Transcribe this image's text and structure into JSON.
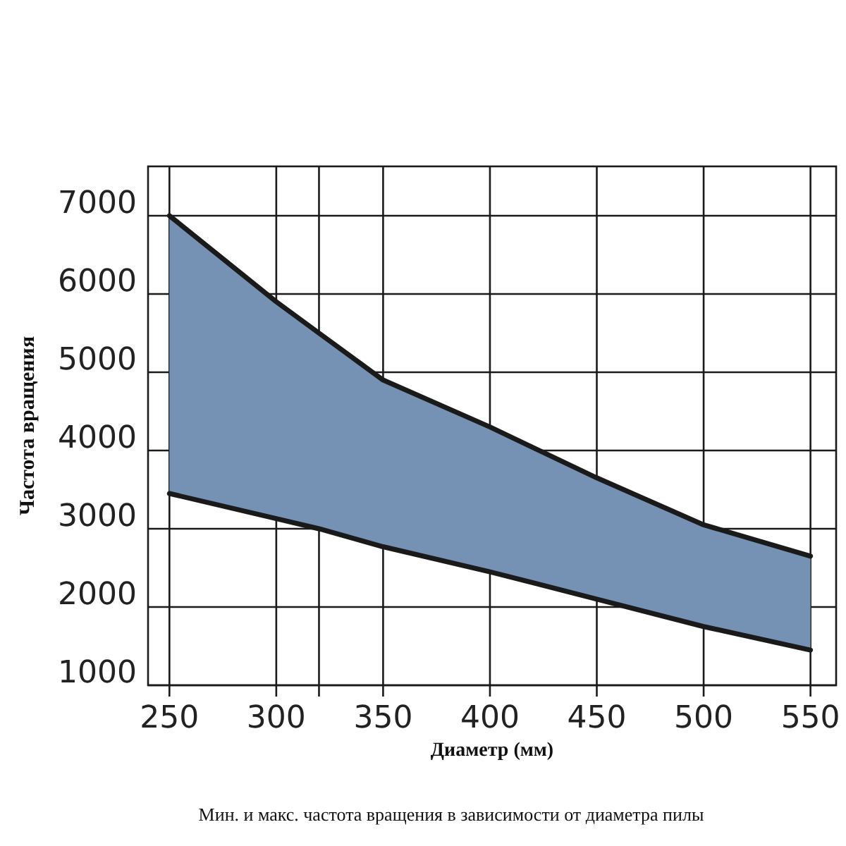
{
  "chart_data": {
    "type": "line",
    "xlabel": "Диаметр (мм)",
    "ylabel": "Частота вращения",
    "annotations": [
      "Мин. и макс. частота вращения в зависимости от диаметра пилы"
    ],
    "x": [
      250,
      300,
      320,
      350,
      400,
      450,
      500,
      550
    ],
    "series": [
      {
        "color": "#1a1a1a",
        "values": [
          7000,
          5900,
          5500,
          4900,
          4300,
          3650,
          3050,
          2650
        ],
        "lower": [
          3450,
          3130,
          3000,
          2770,
          2450,
          2100,
          1750,
          1450
        ],
        "upper": [
          7000,
          5900,
          5500,
          4900,
          4300,
          3650,
          3050,
          2650
        ]
      },
      {
        "color": "#1a1a1a",
        "values": [
          3450,
          3130,
          3000,
          2770,
          2450,
          2100,
          1750,
          1450
        ]
      }
    ],
    "xlim": [
      240,
      562
    ],
    "xticks": [
      250,
      300,
      {
        "value": 320,
        "label": null
      },
      350,
      400,
      450,
      500,
      550
    ],
    "ylim": [
      1000,
      7630
    ],
    "yticks": [
      1000,
      2000,
      3000,
      4000,
      5000,
      6000,
      7000
    ],
    "grid": true,
    "marker": "none",
    "line_style": "solid"
  }
}
